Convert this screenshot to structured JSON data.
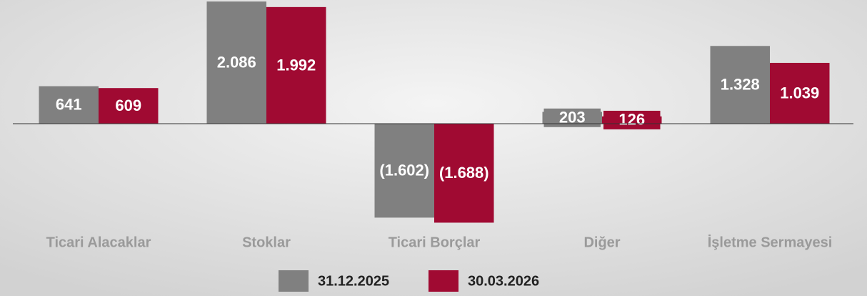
{
  "chart_data": {
    "type": "bar",
    "categories": [
      "Ticari Alacaklar",
      "Stoklar",
      "Ticari Borçlar",
      "Diğer",
      "İşletme Sermayesi"
    ],
    "series": [
      {
        "name": "31.12.2025",
        "color": "#808080",
        "values": [
          641,
          2086,
          -1602,
          203,
          1328
        ],
        "value_labels": [
          "641",
          "2.086",
          "(1.602)",
          "203",
          "1.328"
        ]
      },
      {
        "name": "30.03.2026",
        "color": "#a00a32",
        "values": [
          609,
          1992,
          -1688,
          126,
          1039
        ],
        "value_labels": [
          "609",
          "1.992",
          "(1.688)",
          "126",
          "1.039"
        ]
      }
    ],
    "ylim": [
      -2000,
      2100
    ]
  }
}
